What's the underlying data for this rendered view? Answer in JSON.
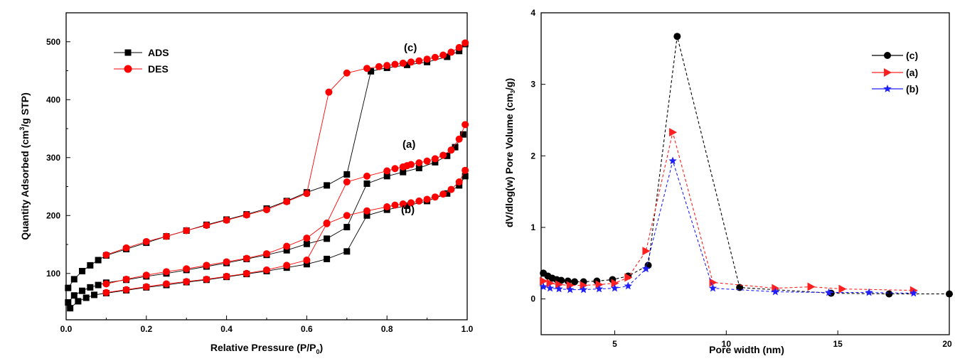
{
  "chart_data": [
    {
      "type": "line",
      "title": "",
      "xlabel": "Relative Pressure (P/P",
      "xlabel_sub": "0",
      "xlabel_end": ")",
      "ylabel": "Quantity Adsorbed (cm",
      "ylabel_sup": "3",
      "ylabel_end": "/g STP)",
      "xlim": [
        0.0,
        1.0
      ],
      "ylim": [
        20,
        550
      ],
      "xticks": [
        "0.0",
        "0.2",
        "0.4",
        "0.6",
        "0.8",
        "1.0"
      ],
      "yticks": [
        "100",
        "200",
        "300",
        "400",
        "500"
      ],
      "legend": [
        {
          "name": "ADS",
          "marker": "square",
          "color": "#000000"
        },
        {
          "name": "DES",
          "marker": "circle",
          "color": "#ff0000"
        }
      ],
      "annotations": [
        "(c)",
        "(a)",
        "(b)"
      ],
      "series": [
        {
          "name": "ADS (c)",
          "color": "#000000",
          "marker": "square",
          "x": [
            0.005,
            0.02,
            0.04,
            0.06,
            0.08,
            0.1,
            0.15,
            0.2,
            0.25,
            0.3,
            0.35,
            0.4,
            0.45,
            0.5,
            0.55,
            0.6,
            0.65,
            0.7,
            0.76,
            0.8,
            0.85,
            0.9,
            0.95,
            0.98,
            0.995
          ],
          "y": [
            75,
            90,
            104,
            114,
            123,
            131,
            142,
            153,
            164,
            174,
            184,
            193,
            202,
            212,
            225,
            240,
            252,
            271,
            449,
            455,
            460,
            465,
            474,
            484,
            496
          ]
        },
        {
          "name": "DES (c)",
          "color": "#ff0000",
          "marker": "circle",
          "x": [
            0.995,
            0.98,
            0.96,
            0.94,
            0.92,
            0.9,
            0.88,
            0.86,
            0.84,
            0.82,
            0.8,
            0.78,
            0.75,
            0.7,
            0.655,
            0.6,
            0.55,
            0.5,
            0.45,
            0.4,
            0.35,
            0.3,
            0.25,
            0.2,
            0.15,
            0.1
          ],
          "y": [
            498,
            490,
            482,
            477,
            473,
            470,
            467,
            465,
            463,
            461,
            459,
            457,
            454,
            446,
            413,
            238,
            224,
            210,
            201,
            192,
            183,
            174,
            164,
            155,
            144,
            132
          ]
        },
        {
          "name": "ADS (a)",
          "color": "#000000",
          "marker": "square",
          "x": [
            0.005,
            0.02,
            0.04,
            0.06,
            0.08,
            0.1,
            0.15,
            0.2,
            0.25,
            0.3,
            0.35,
            0.4,
            0.45,
            0.5,
            0.55,
            0.6,
            0.65,
            0.7,
            0.75,
            0.8,
            0.84,
            0.88,
            0.92,
            0.95,
            0.97,
            0.99
          ],
          "y": [
            50,
            62,
            70,
            76,
            80,
            84,
            89,
            95,
            100,
            106,
            112,
            118,
            125,
            132,
            140,
            151,
            160,
            180,
            255,
            268,
            275,
            282,
            292,
            303,
            318,
            340
          ]
        },
        {
          "name": "DES (a)",
          "color": "#ff0000",
          "marker": "circle",
          "x": [
            0.995,
            0.98,
            0.96,
            0.94,
            0.92,
            0.9,
            0.88,
            0.86,
            0.85,
            0.84,
            0.82,
            0.8,
            0.75,
            0.7,
            0.65,
            0.6,
            0.55,
            0.5,
            0.45,
            0.4,
            0.35,
            0.3,
            0.25,
            0.2,
            0.15,
            0.1
          ],
          "y": [
            357,
            332,
            313,
            304,
            298,
            294,
            291,
            288,
            286,
            284,
            281,
            277,
            268,
            258,
            187,
            161,
            147,
            134,
            126,
            120,
            114,
            108,
            103,
            97,
            90,
            82
          ]
        },
        {
          "name": "ADS (b)",
          "color": "#000000",
          "marker": "square",
          "x": [
            0.01,
            0.03,
            0.05,
            0.07,
            0.1,
            0.15,
            0.2,
            0.25,
            0.3,
            0.35,
            0.4,
            0.45,
            0.5,
            0.55,
            0.6,
            0.65,
            0.7,
            0.75,
            0.8,
            0.85,
            0.9,
            0.95,
            0.98,
            0.995
          ],
          "y": [
            40,
            52,
            58,
            63,
            66,
            71,
            76,
            80,
            85,
            89,
            94,
            99,
            104,
            110,
            116,
            125,
            138,
            200,
            210,
            217,
            225,
            238,
            252,
            268
          ]
        },
        {
          "name": "DES (b)",
          "color": "#ff0000",
          "marker": "circle",
          "x": [
            0.995,
            0.98,
            0.96,
            0.94,
            0.92,
            0.9,
            0.88,
            0.86,
            0.84,
            0.82,
            0.8,
            0.75,
            0.7,
            0.65,
            0.6,
            0.55,
            0.5,
            0.45,
            0.4,
            0.35,
            0.3,
            0.25,
            0.2,
            0.15,
            0.1
          ],
          "y": [
            278,
            258,
            245,
            237,
            232,
            228,
            225,
            222,
            220,
            218,
            215,
            208,
            200,
            186,
            123,
            114,
            106,
            100,
            95,
            90,
            86,
            82,
            77,
            72,
            67
          ]
        }
      ]
    },
    {
      "type": "line",
      "title": "",
      "xlabel": "Pore width  (nm)",
      "ylabel": "dV/dlog(w) Pore Volume (cm",
      "ylabel_sub": "3",
      "ylabel_end": "/g)",
      "xlim": [
        1.7,
        20
      ],
      "ylim": [
        -0.5,
        4
      ],
      "xticks": [
        "5",
        "10",
        "15",
        "20"
      ],
      "yticks": [
        "0",
        "1",
        "2",
        "3",
        "4"
      ],
      "legend": [
        {
          "name": "(c)",
          "marker": "circle",
          "color": "#000000"
        },
        {
          "name": "(a)",
          "marker": "triangle-right",
          "color": "#ff2020"
        },
        {
          "name": "(b)",
          "marker": "star",
          "color": "#2020ff"
        }
      ],
      "series": [
        {
          "name": "(c)",
          "color": "#000000",
          "marker": "circle",
          "x": [
            1.8,
            2.0,
            2.2,
            2.4,
            2.6,
            2.9,
            3.2,
            3.6,
            4.2,
            4.9,
            5.6,
            6.5,
            7.8,
            10.6,
            14.7,
            17.3,
            20.0
          ],
          "y": [
            0.36,
            0.32,
            0.29,
            0.27,
            0.26,
            0.25,
            0.24,
            0.24,
            0.25,
            0.27,
            0.32,
            0.47,
            3.67,
            0.16,
            0.08,
            0.07,
            0.07
          ]
        },
        {
          "name": "(a)",
          "color": "#ff2020",
          "marker": "triangle-right",
          "x": [
            1.8,
            2.1,
            2.5,
            3.0,
            3.6,
            4.3,
            5.0,
            5.6,
            6.4,
            7.6,
            9.4,
            12.2,
            13.8,
            15.2,
            18.4
          ],
          "y": [
            0.25,
            0.22,
            0.2,
            0.19,
            0.19,
            0.2,
            0.22,
            0.3,
            0.67,
            2.33,
            0.23,
            0.15,
            0.17,
            0.14,
            0.12
          ]
        },
        {
          "name": "(b)",
          "color": "#2020ff",
          "marker": "star",
          "x": [
            1.8,
            2.1,
            2.5,
            3.0,
            3.6,
            4.3,
            5.0,
            5.6,
            6.4,
            7.6,
            9.4,
            12.2,
            14.6,
            16.4,
            18.4
          ],
          "y": [
            0.17,
            0.15,
            0.14,
            0.13,
            0.13,
            0.14,
            0.15,
            0.18,
            0.42,
            1.93,
            0.15,
            0.1,
            0.09,
            0.09,
            0.08
          ]
        }
      ]
    }
  ]
}
